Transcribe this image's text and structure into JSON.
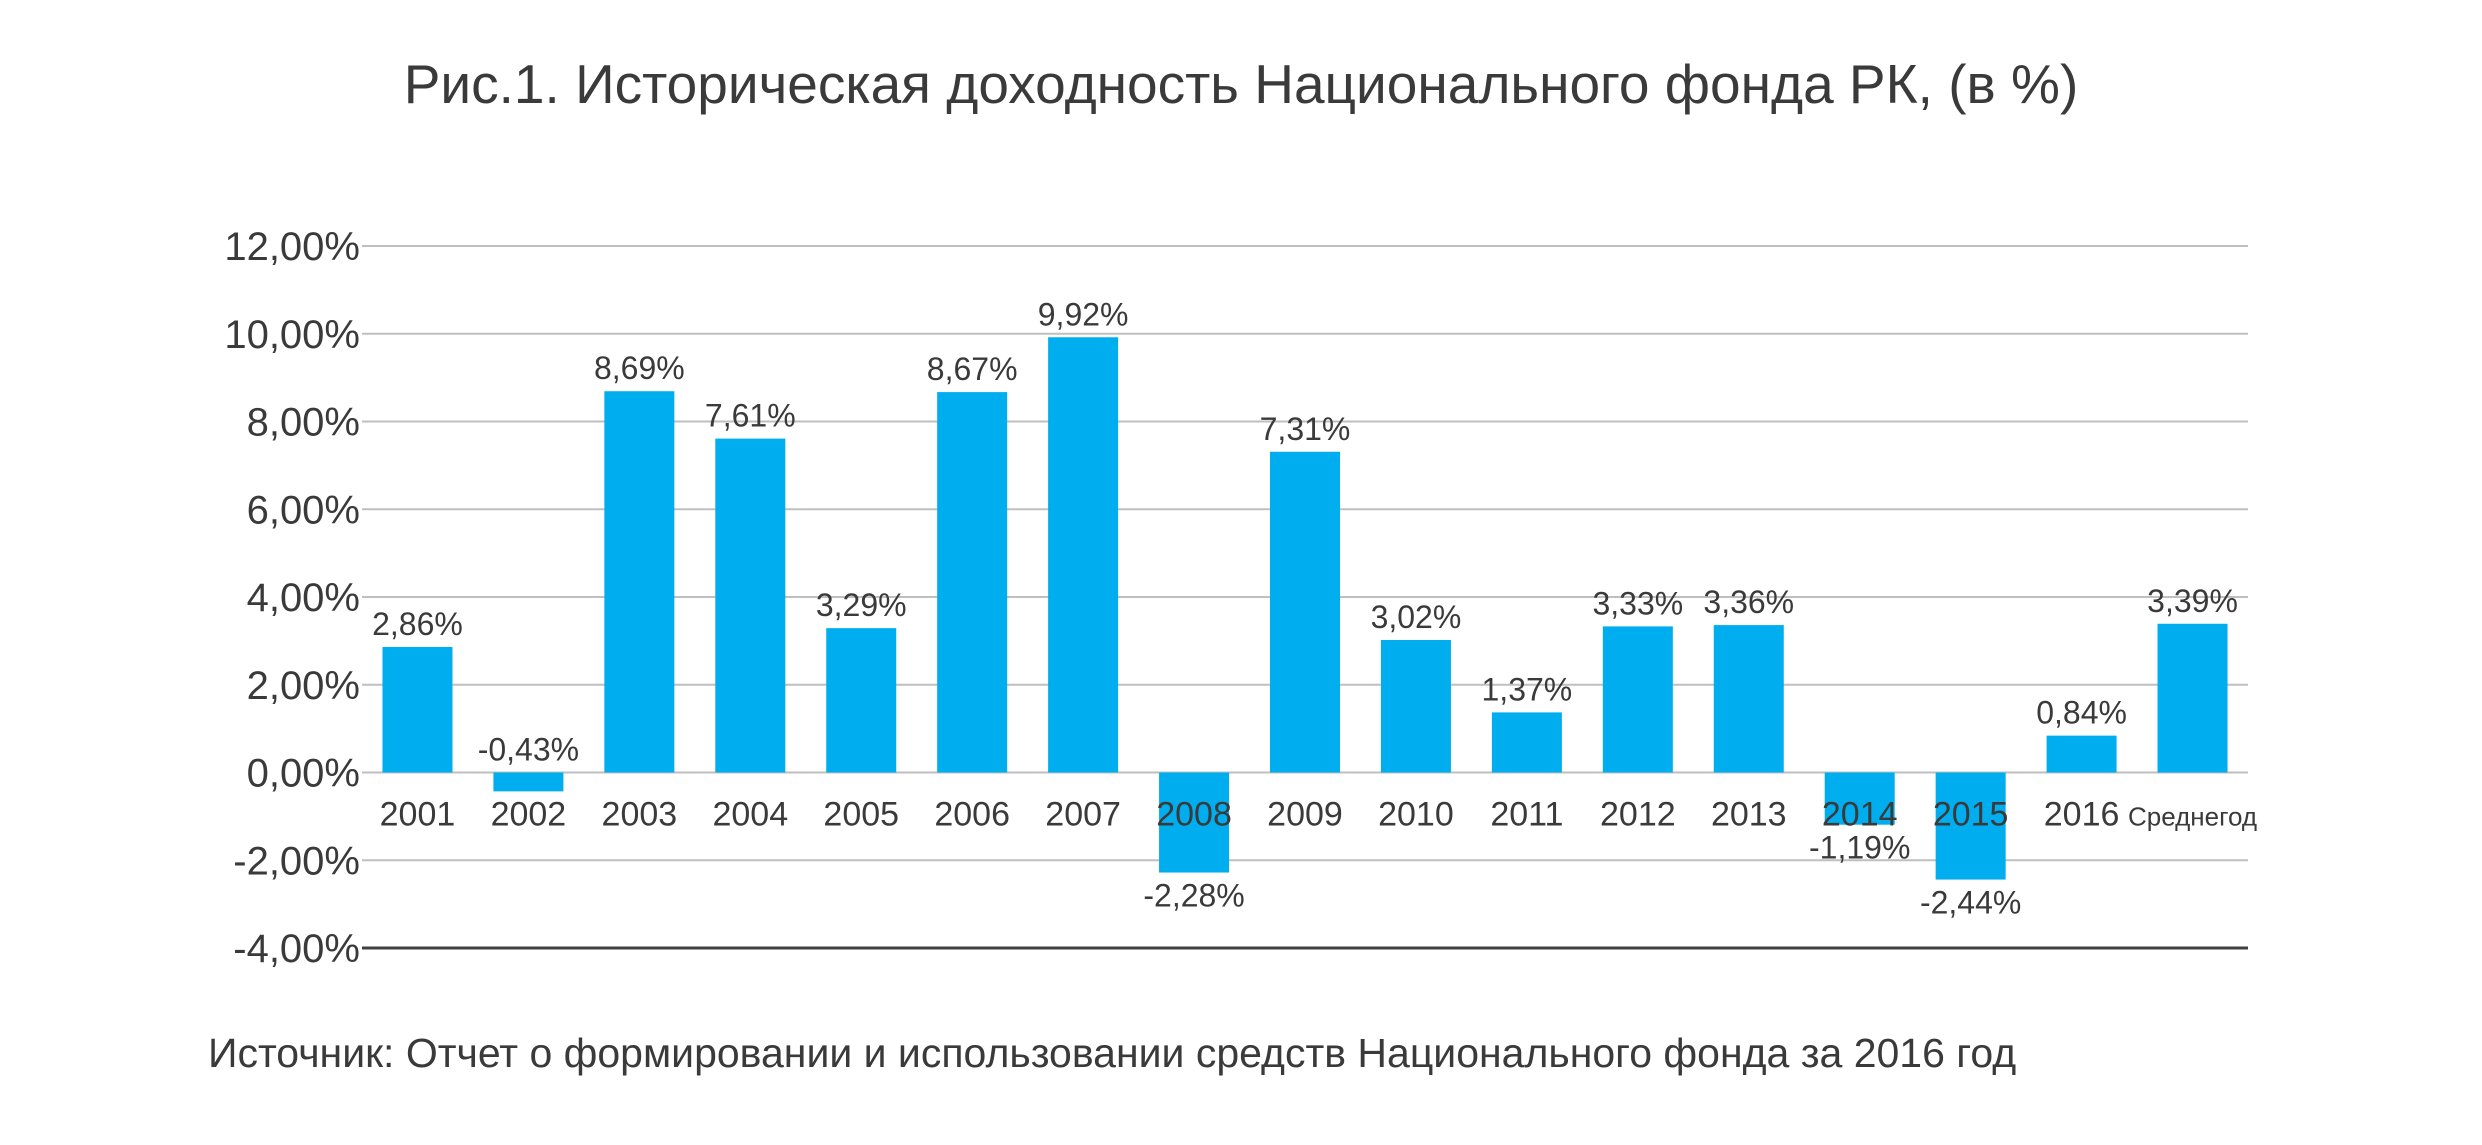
{
  "chart_data": {
    "type": "bar",
    "title": "Рис.1. Историческая доходность Национального фонда РК, (в %)",
    "source": "Источник: Отчет о формировании и использовании средств Национального фонда за 2016 год",
    "categories": [
      "2001",
      "2002",
      "2003",
      "2004",
      "2005",
      "2006",
      "2007",
      "2008",
      "2009",
      "2010",
      "2011",
      "2012",
      "2013",
      "2014",
      "2015",
      "2016",
      "Среднегод"
    ],
    "values": [
      2.86,
      -0.43,
      8.69,
      7.61,
      3.29,
      8.67,
      9.92,
      -2.28,
      7.31,
      3.02,
      1.37,
      3.33,
      3.36,
      -1.19,
      -2.44,
      0.84,
      3.39
    ],
    "data_labels": [
      "2,86%",
      "-0,43%",
      "8,69%",
      "7,61%",
      "3,29%",
      "8,67%",
      "9,92%",
      "-2,28%",
      "7,31%",
      "3,02%",
      "1,37%",
      "3,33%",
      "3,36%",
      "-1,19%",
      "-2,44%",
      "0,84%",
      "3,39%"
    ],
    "ylim": [
      -4,
      12
    ],
    "yticks": [
      12,
      10,
      8,
      6,
      4,
      2,
      0,
      -2,
      -4
    ],
    "ytick_labels": [
      "12,00%",
      "10,00%",
      "8,00%",
      "6,00%",
      "4,00%",
      "2,00%",
      "0,00%",
      "-2,00%",
      "-4,00%"
    ],
    "xlabel": "",
    "ylabel": "",
    "grid": true,
    "legend": "none",
    "bar_color": "#00AEEF",
    "grid_color": "#BFBFBF",
    "axis_color": "#404040"
  }
}
